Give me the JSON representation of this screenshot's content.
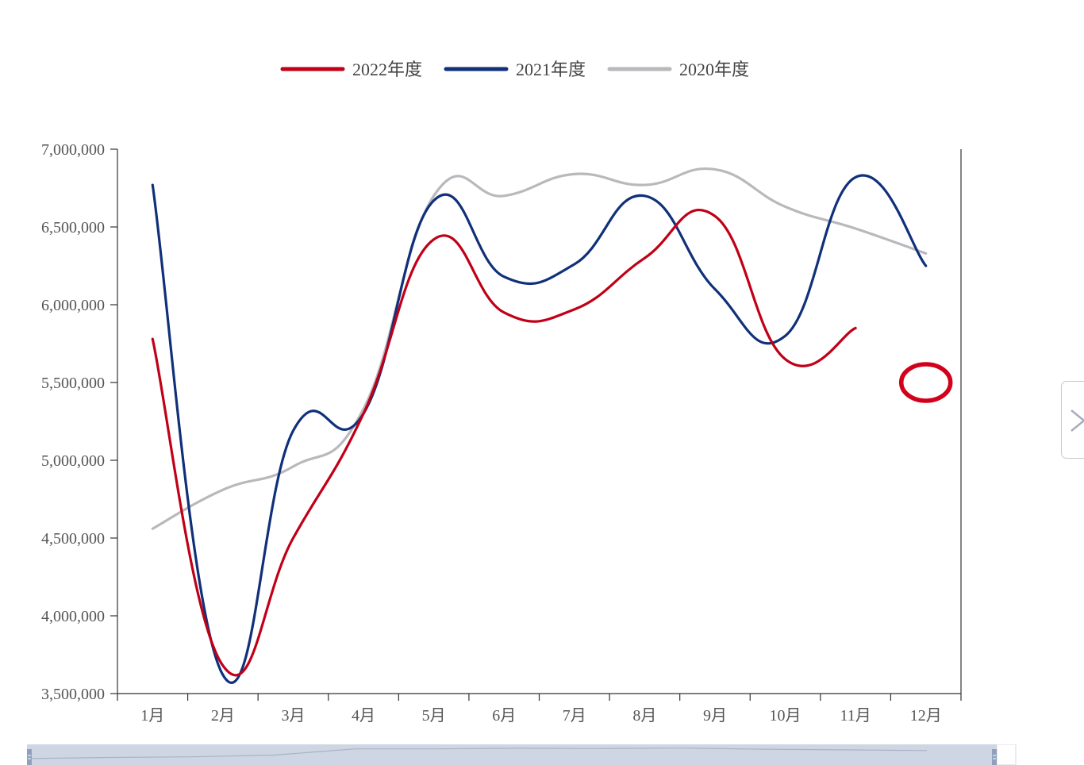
{
  "chart_data": {
    "type": "line",
    "smooth": true,
    "categories": [
      "1月",
      "2月",
      "3月",
      "4月",
      "5月",
      "6月",
      "7月",
      "8月",
      "9月",
      "10月",
      "11月",
      "12月"
    ],
    "series": [
      {
        "name": "2022年度",
        "color": "#c00017",
        "values": [
          5780000,
          3680000,
          4500000,
          5300000,
          6420000,
          5950000,
          5970000,
          6300000,
          6570000,
          5650000,
          5850000,
          null
        ]
      },
      {
        "name": "2021年度",
        "color": "#10307a",
        "values": [
          6770000,
          3620000,
          5190000,
          5300000,
          6670000,
          6180000,
          6260000,
          6700000,
          6100000,
          5800000,
          6820000,
          6250000
        ]
      },
      {
        "name": "2020年度",
        "color": "#b9b9bd",
        "values": [
          4560000,
          4810000,
          4960000,
          5330000,
          6700000,
          6700000,
          6840000,
          6770000,
          6870000,
          6630000,
          6490000,
          6330000
        ]
      }
    ],
    "y_ticks": [
      "7,000,000",
      "6,500,000",
      "6,000,000",
      "5,500,000",
      "5,000,000",
      "4,500,000",
      "4,000,000",
      "3,500,000"
    ],
    "ylim": [
      3500000,
      7000000
    ],
    "legend_position": "top-center",
    "annotation": {
      "type": "red-circle",
      "category": "12月",
      "value": 5500000
    }
  },
  "ui": {
    "next_icon": "chevron-right-icon",
    "datazoom": "data-zoom-slider"
  }
}
